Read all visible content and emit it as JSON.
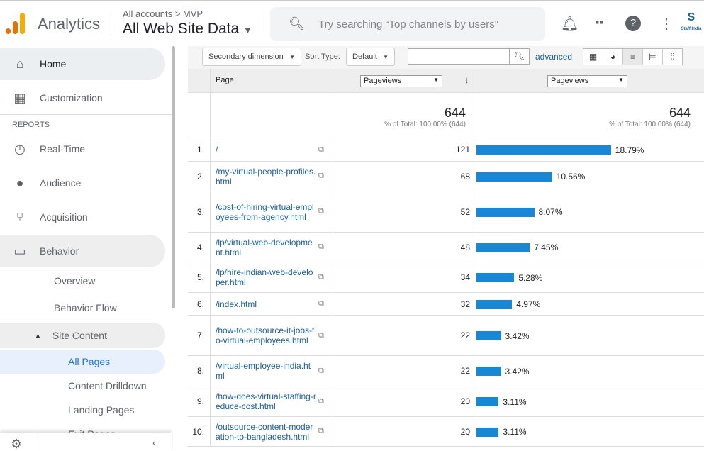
{
  "header": {
    "app_name": "Analytics",
    "breadcrumb": "All accounts > MVP",
    "property": "All Web Site Data",
    "search_placeholder": "Try searching “Top channels by users”",
    "brand": "Staff India"
  },
  "sidebar": {
    "items": [
      {
        "label": "Home",
        "icon": "home-icon"
      },
      {
        "label": "Customization",
        "icon": "customization-icon"
      }
    ],
    "section": "REPORTS",
    "reports": [
      {
        "label": "Real-Time",
        "icon": "clock-icon"
      },
      {
        "label": "Audience",
        "icon": "person-icon"
      },
      {
        "label": "Acquisition",
        "icon": "acquisition-icon"
      },
      {
        "label": "Behavior",
        "icon": "behavior-icon"
      }
    ],
    "behavior_sub": [
      "Overview",
      "Behavior Flow"
    ],
    "site_content": "Site Content",
    "site_content_sub": [
      "All Pages",
      "Content Drilldown",
      "Landing Pages",
      "Exit Pages"
    ]
  },
  "toolbar": {
    "secondary_dimension": "Secondary dimension",
    "sort_type_label": "Sort Type:",
    "sort_type": "Default",
    "advanced": "advanced"
  },
  "table": {
    "col_page": "Page",
    "col_metric1": "Pageviews",
    "col_metric2": "Pageviews",
    "total": "644",
    "total_pct": "% of Total: 100.00% (644)",
    "rows": [
      {
        "i": "1.",
        "page": "/",
        "views": "121",
        "pct": "18.79%",
        "v": 18.79
      },
      {
        "i": "2.",
        "page": "/my-virtual-people-profiles.html",
        "views": "68",
        "pct": "10.56%",
        "v": 10.56
      },
      {
        "i": "3.",
        "page": "/cost-of-hiring-virtual-employees-from-agency.html",
        "views": "52",
        "pct": "8.07%",
        "v": 8.07
      },
      {
        "i": "4.",
        "page": "/lp/virtual-web-development.html",
        "views": "48",
        "pct": "7.45%",
        "v": 7.45
      },
      {
        "i": "5.",
        "page": "/lp/hire-indian-web-developer.html",
        "views": "34",
        "pct": "5.28%",
        "v": 5.28
      },
      {
        "i": "6.",
        "page": "/index.html",
        "views": "32",
        "pct": "4.97%",
        "v": 4.97
      },
      {
        "i": "7.",
        "page": "/how-to-outsource-it-jobs-to-virtual-employees.html",
        "views": "22",
        "pct": "3.42%",
        "v": 3.42
      },
      {
        "i": "8.",
        "page": "/virtual-employee-india.html",
        "views": "22",
        "pct": "3.42%",
        "v": 3.42
      },
      {
        "i": "9.",
        "page": "/how-does-virtual-staffing-reduce-cost.html",
        "views": "20",
        "pct": "3.11%",
        "v": 3.11
      },
      {
        "i": "10.",
        "page": "/outsource-content-moderation-to-bangladesh.html",
        "views": "20",
        "pct": "3.11%",
        "v": 3.11
      }
    ]
  }
}
